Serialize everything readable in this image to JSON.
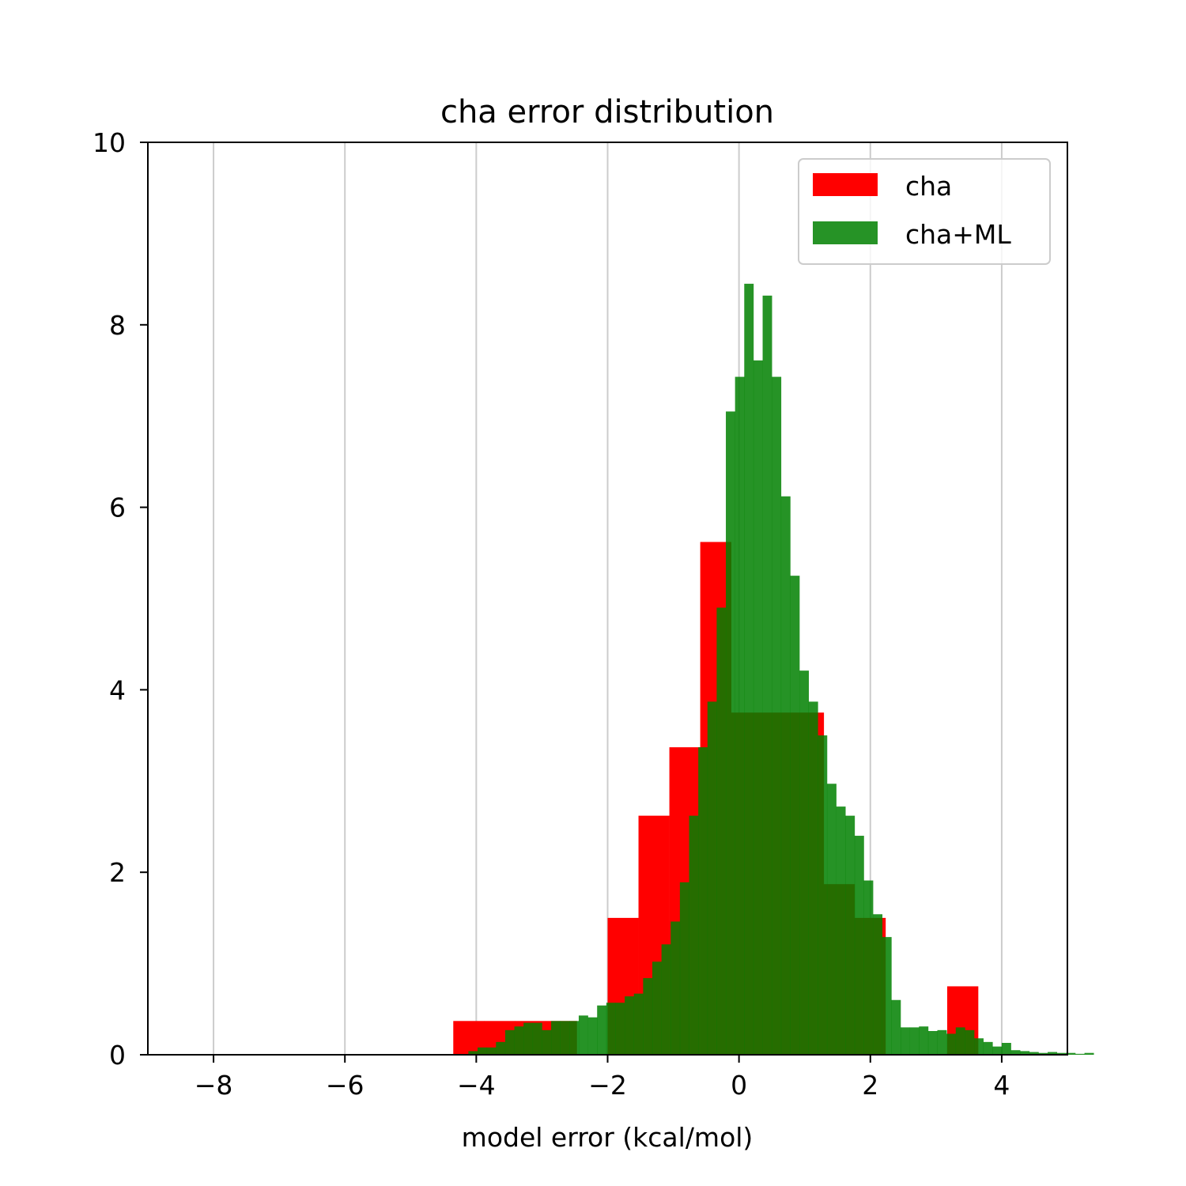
{
  "chart_data": {
    "type": "bar",
    "title": "cha error distribution",
    "xlabel": "model error (kcal/mol)",
    "ylabel": "",
    "xlim": [
      -9,
      5
    ],
    "ylim": [
      0,
      10
    ],
    "x_ticks": [
      -8,
      -6,
      -4,
      -2,
      0,
      2,
      4
    ],
    "x_tick_labels": [
      "−8",
      "−6",
      "−4",
      "−2",
      "0",
      "2",
      "4"
    ],
    "y_ticks": [
      0,
      2,
      4,
      6,
      8,
      10
    ],
    "y_tick_labels": [
      "0",
      "2",
      "4",
      "6",
      "8",
      "10"
    ],
    "grid": "x-axis vertical lines",
    "legend_position": "top-right",
    "series": [
      {
        "name": "cha",
        "color": "#ff0000",
        "opacity": 1.0,
        "bins": [
          {
            "x0": -4.35,
            "x1": -3.88,
            "y": 0.37
          },
          {
            "x0": -3.88,
            "x1": -3.41,
            "y": 0.37
          },
          {
            "x0": -3.41,
            "x1": -2.94,
            "y": 0.37
          },
          {
            "x0": -2.94,
            "x1": -2.47,
            "y": 0.37
          },
          {
            "x0": -2.47,
            "x1": -2.0,
            "y": 0.0
          },
          {
            "x0": -2.0,
            "x1": -1.53,
            "y": 1.5
          },
          {
            "x0": -1.53,
            "x1": -1.06,
            "y": 2.62
          },
          {
            "x0": -1.06,
            "x1": -0.59,
            "y": 3.37
          },
          {
            "x0": -0.59,
            "x1": -0.12,
            "y": 5.62
          },
          {
            "x0": -0.12,
            "x1": 0.35,
            "y": 3.75
          },
          {
            "x0": 0.35,
            "x1": 0.82,
            "y": 3.75
          },
          {
            "x0": 0.82,
            "x1": 1.29,
            "y": 3.75
          },
          {
            "x0": 1.29,
            "x1": 1.76,
            "y": 1.87
          },
          {
            "x0": 1.76,
            "x1": 2.23,
            "y": 1.5
          },
          {
            "x0": 2.23,
            "x1": 2.7,
            "y": 0.0
          },
          {
            "x0": 2.7,
            "x1": 3.17,
            "y": 0.0
          },
          {
            "x0": 3.17,
            "x1": 3.64,
            "y": 0.75
          }
        ]
      },
      {
        "name": "cha+ML",
        "color": "#008000",
        "opacity": 0.85,
        "bin_start": -4.12,
        "bin_width": 0.14,
        "values": [
          0.04,
          0.08,
          0.08,
          0.14,
          0.27,
          0.31,
          0.35,
          0.35,
          0.27,
          0.37,
          0.37,
          0.37,
          0.43,
          0.41,
          0.54,
          0.57,
          0.57,
          0.64,
          0.67,
          0.84,
          1.02,
          1.21,
          1.46,
          1.89,
          2.62,
          3.37,
          3.87,
          4.9,
          7.05,
          7.43,
          8.45,
          7.61,
          8.32,
          7.43,
          6.12,
          5.25,
          4.21,
          3.87,
          3.5,
          2.97,
          2.72,
          2.62,
          2.4,
          1.91,
          1.54,
          1.29,
          0.6,
          0.3,
          0.3,
          0.31,
          0.26,
          0.27,
          0.23,
          0.3,
          0.27,
          0.18,
          0.14,
          0.09,
          0.13,
          0.05,
          0.04,
          0.03,
          0.02,
          0.03,
          0.02,
          0.02,
          0.01,
          0.02
        ]
      }
    ]
  }
}
